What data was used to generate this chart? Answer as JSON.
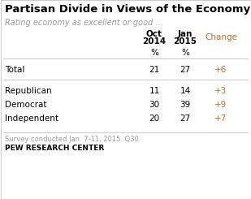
{
  "title": "Partisan Divide in Views of the Economy",
  "subtitle": "Rating economy as excellent or good ...",
  "col_headers_line1": [
    "Oct",
    "Jan",
    "Change"
  ],
  "col_headers_line2": [
    "2014",
    "2015",
    ""
  ],
  "col_subheaders": [
    "%",
    "%",
    ""
  ],
  "row_labels": [
    "Total",
    "Republican",
    "Democrat",
    "Independent"
  ],
  "oct2014": [
    "21",
    "11",
    "30",
    "20"
  ],
  "jan2015": [
    "27",
    "14",
    "39",
    "27"
  ],
  "change": [
    "+6",
    "+3",
    "+9",
    "+7"
  ],
  "footnote": "Survey conducted Jan. 7-11, 2015. Q30.",
  "source": "PEW RESEARCH CENTER",
  "title_color": "#000000",
  "subtitle_color": "#999999",
  "header_color": "#000000",
  "change_color": "#c8692a",
  "row_label_color": "#000000",
  "data_color": "#000000",
  "footnote_color": "#999999",
  "border_color": "#cccccc",
  "bg_color": "#ffffff"
}
